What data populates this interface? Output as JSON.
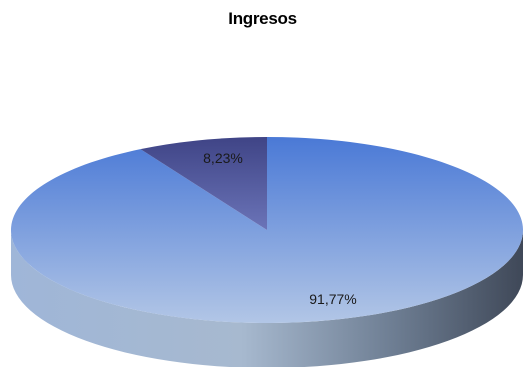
{
  "chart_data": {
    "type": "pie",
    "title": "Ingresos",
    "style": "3d",
    "slices": [
      {
        "value": 91.77,
        "label": "91,77%",
        "color": "#5b86d8"
      },
      {
        "value": 8.23,
        "label": "8,23%",
        "color": "#4a4f8f"
      }
    ]
  }
}
